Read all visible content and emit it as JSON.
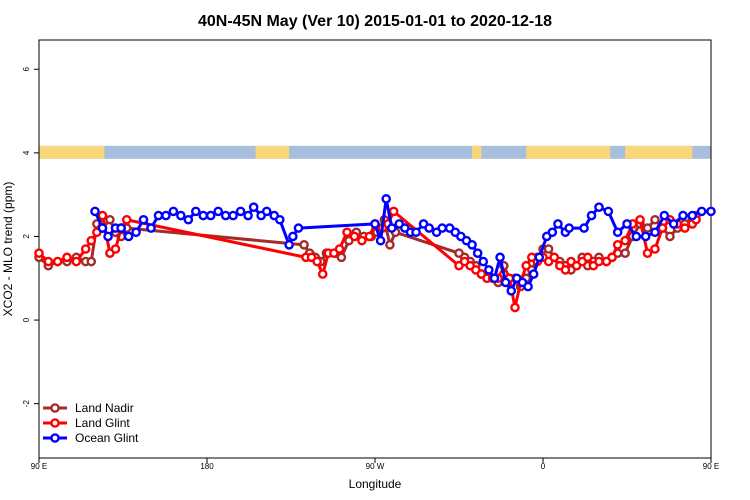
{
  "chart_data": {
    "type": "line",
    "title": "40N-45N May (Ver 10)   2015-01-01 to 2020-12-18",
    "xlabel": "Longitude",
    "ylabel": "XCO2 - MLO trend (ppm)",
    "xlim": [
      90,
      450
    ],
    "ylim": [
      -3.3,
      6.7
    ],
    "x_ticks": [
      {
        "value": 90,
        "label": "90 E"
      },
      {
        "value": 180,
        "label": "180"
      },
      {
        "value": 270,
        "label": "90 W"
      },
      {
        "value": 360,
        "label": "0"
      },
      {
        "value": 450,
        "label": "90 E"
      },
      {
        "value": 540,
        "label": "180"
      }
    ],
    "y_ticks": [
      {
        "value": -2,
        "label": "-2"
      },
      {
        "value": 0,
        "label": "0"
      },
      {
        "value": 2,
        "label": "2"
      },
      {
        "value": 4,
        "label": "4"
      },
      {
        "value": 6,
        "label": "6"
      }
    ],
    "legend_position": "bottom-left",
    "grid": false,
    "land_mask": {
      "y": 4.0,
      "land_color": "#FAD67A",
      "ocean_color": "#A7BFDD",
      "land_ranges": [
        [
          90,
          125
        ],
        [
          206,
          224
        ],
        [
          322,
          327
        ],
        [
          351,
          396
        ],
        [
          404,
          440
        ],
        [
          465,
          534
        ],
        [
          538,
          540
        ]
      ]
    },
    "series": [
      {
        "name": "Land Nadir",
        "color": "#A52A2A",
        "x": [
          90,
          95,
          100,
          105,
          110,
          115,
          118,
          121,
          124,
          128,
          131,
          134,
          137,
          232,
          235,
          238,
          241,
          244,
          249,
          252,
          256,
          260,
          264,
          268,
          271,
          275,
          278,
          281,
          315,
          318,
          321,
          324,
          327,
          330,
          333,
          336,
          339,
          342,
          345,
          348,
          351,
          354,
          357,
          360,
          363,
          366,
          369,
          372,
          375,
          378,
          381,
          384,
          387,
          390,
          394,
          397,
          400,
          404,
          408,
          412,
          416,
          420,
          424,
          428,
          432,
          436,
          440,
          442
        ],
        "y": [
          1.5,
          1.3,
          1.4,
          1.4,
          1.5,
          1.4,
          1.4,
          2.3,
          2.2,
          2.4,
          2.1,
          2.0,
          2.2,
          1.8,
          1.6,
          1.5,
          1.4,
          1.6,
          1.6,
          1.5,
          1.9,
          2.1,
          2.0,
          2.0,
          2.1,
          2.4,
          1.8,
          2.1,
          1.6,
          1.5,
          1.4,
          1.3,
          1.1,
          1.0,
          1.0,
          0.9,
          1.3,
          1.0,
          1.0,
          0.8,
          1.0,
          1.2,
          1.5,
          1.7,
          1.7,
          1.5,
          1.4,
          1.3,
          1.2,
          1.3,
          1.5,
          1.3,
          1.4,
          1.5,
          1.4,
          1.5,
          1.6,
          1.6,
          2.0,
          2.3,
          2.2,
          2.4,
          2.2,
          2.0,
          2.2,
          2.3,
          2.4,
          2.5
        ]
      },
      {
        "name": "Land Glint",
        "color": "#FF0000",
        "x": [
          90,
          95,
          100,
          105,
          110,
          115,
          118,
          121,
          124,
          128,
          131,
          134,
          137,
          233,
          236,
          239,
          242,
          245,
          248,
          251,
          255,
          259,
          263,
          267,
          270,
          274,
          277,
          280,
          315,
          318,
          321,
          324,
          327,
          330,
          333,
          336,
          339,
          342,
          345,
          348,
          351,
          354,
          357,
          360,
          363,
          366,
          369,
          372,
          375,
          378,
          381,
          384,
          387,
          390,
          394,
          397,
          400,
          404,
          408,
          412,
          416,
          420,
          424,
          428,
          432,
          436,
          440,
          442
        ],
        "y": [
          1.6,
          1.4,
          1.4,
          1.5,
          1.4,
          1.7,
          1.9,
          2.1,
          2.5,
          1.6,
          1.7,
          2.2,
          2.4,
          1.5,
          1.5,
          1.4,
          1.1,
          1.6,
          1.6,
          1.7,
          2.1,
          2.0,
          1.9,
          2.0,
          2.3,
          2.2,
          2.3,
          2.6,
          1.3,
          1.4,
          1.3,
          1.2,
          1.1,
          1.0,
          1.0,
          1.0,
          1.1,
          1.0,
          0.3,
          0.9,
          1.3,
          1.5,
          1.4,
          1.5,
          1.4,
          1.5,
          1.3,
          1.2,
          1.4,
          1.3,
          1.4,
          1.5,
          1.3,
          1.4,
          1.4,
          1.5,
          1.8,
          1.9,
          2.3,
          2.4,
          1.6,
          1.7,
          2.2,
          2.4,
          2.3,
          2.2,
          2.3,
          2.4
        ]
      },
      {
        "name": "Ocean Glint",
        "color": "#0000FF",
        "x": [
          120,
          124,
          127,
          131,
          134,
          138,
          142,
          146,
          150,
          154,
          158,
          162,
          166,
          170,
          174,
          178,
          182,
          186,
          190,
          194,
          198,
          202,
          205,
          209,
          212,
          216,
          219,
          224,
          226,
          229,
          270,
          273,
          276,
          279,
          283,
          286,
          289,
          292,
          296,
          299,
          303,
          306,
          310,
          313,
          316,
          319,
          322,
          325,
          328,
          331,
          334,
          337,
          340,
          343,
          346,
          349,
          352,
          355,
          358,
          362,
          365,
          368,
          372,
          374,
          382,
          386,
          390,
          395,
          400,
          405,
          410,
          415,
          420,
          425,
          430,
          435,
          440,
          445,
          450
        ],
        "y": [
          2.6,
          2.2,
          2.0,
          2.2,
          2.2,
          2.0,
          2.1,
          2.4,
          2.2,
          2.5,
          2.5,
          2.6,
          2.5,
          2.4,
          2.6,
          2.5,
          2.5,
          2.6,
          2.5,
          2.5,
          2.6,
          2.5,
          2.7,
          2.5,
          2.6,
          2.5,
          2.4,
          1.8,
          2.0,
          2.2,
          2.3,
          1.9,
          2.9,
          2.2,
          2.3,
          2.2,
          2.1,
          2.1,
          2.3,
          2.2,
          2.1,
          2.2,
          2.2,
          2.1,
          2.0,
          1.9,
          1.8,
          1.6,
          1.4,
          1.2,
          1.0,
          1.5,
          0.9,
          0.7,
          1.0,
          0.9,
          0.8,
          1.1,
          1.5,
          2.0,
          2.1,
          2.3,
          2.1,
          2.2,
          2.2,
          2.5,
          2.7,
          2.6,
          2.1,
          2.3,
          2.0,
          2.0,
          2.1,
          2.5,
          2.3,
          2.5,
          2.5,
          2.6,
          2.6
        ]
      }
    ]
  }
}
